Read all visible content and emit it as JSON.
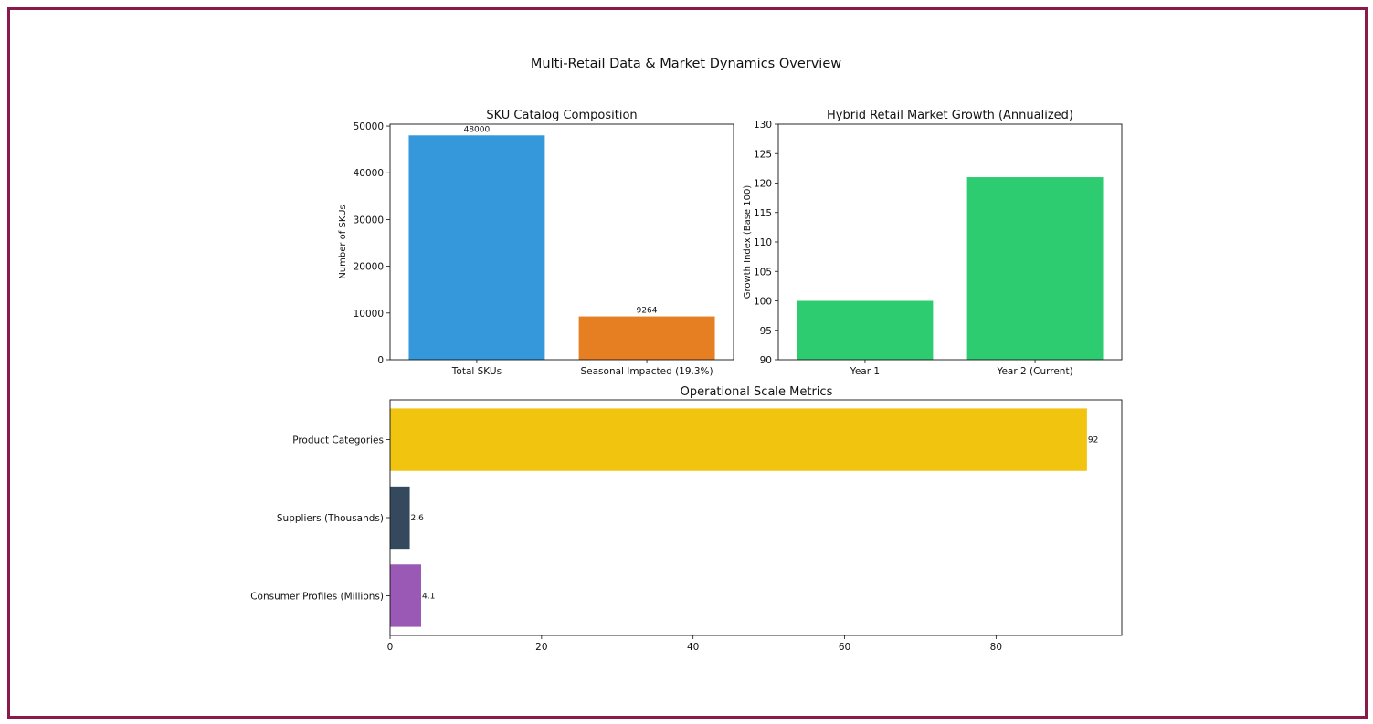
{
  "figure": {
    "title": "Multi-Retail Data & Market Dynamics Overview",
    "border_color": "#8b1a4a"
  },
  "chart_data": [
    {
      "id": "sku",
      "type": "bar",
      "title": "SKU Catalog Composition",
      "xlabel": "",
      "ylabel": "Number of SKUs",
      "categories": [
        "Total SKUs",
        "Seasonal Impacted (19.3%)"
      ],
      "values": [
        48000,
        9264
      ],
      "value_labels": [
        "48000",
        "9264"
      ],
      "colors": [
        "#3498db",
        "#e67e22"
      ],
      "ylim": [
        0,
        50400
      ],
      "yticks": [
        0,
        10000,
        20000,
        30000,
        40000,
        50000
      ],
      "grid": false
    },
    {
      "id": "growth",
      "type": "bar",
      "title": "Hybrid Retail Market Growth (Annualized)",
      "xlabel": "",
      "ylabel": "Growth Index (Base 100)",
      "categories": [
        "Year 1",
        "Year 2 (Current)"
      ],
      "values": [
        100,
        121
      ],
      "colors": [
        "#2ecc71",
        "#2ecc71"
      ],
      "ylim": [
        90,
        130
      ],
      "yticks": [
        90,
        95,
        100,
        105,
        110,
        115,
        120,
        125,
        130
      ],
      "grid": false
    },
    {
      "id": "ops",
      "type": "bar",
      "orientation": "horizontal",
      "title": "Operational Scale Metrics",
      "xlabel": "",
      "ylabel": "",
      "categories": [
        "Product Categories",
        "Suppliers (Thousands)",
        "Consumer Profiles (Millions)"
      ],
      "values": [
        92,
        2.6,
        4.1
      ],
      "value_labels": [
        "92",
        "2.6",
        "4.1"
      ],
      "colors": [
        "#f1c40f",
        "#34495e",
        "#9b59b6"
      ],
      "xlim": [
        0,
        96.6
      ],
      "xticks": [
        0,
        20,
        40,
        60,
        80
      ],
      "grid": false
    }
  ]
}
